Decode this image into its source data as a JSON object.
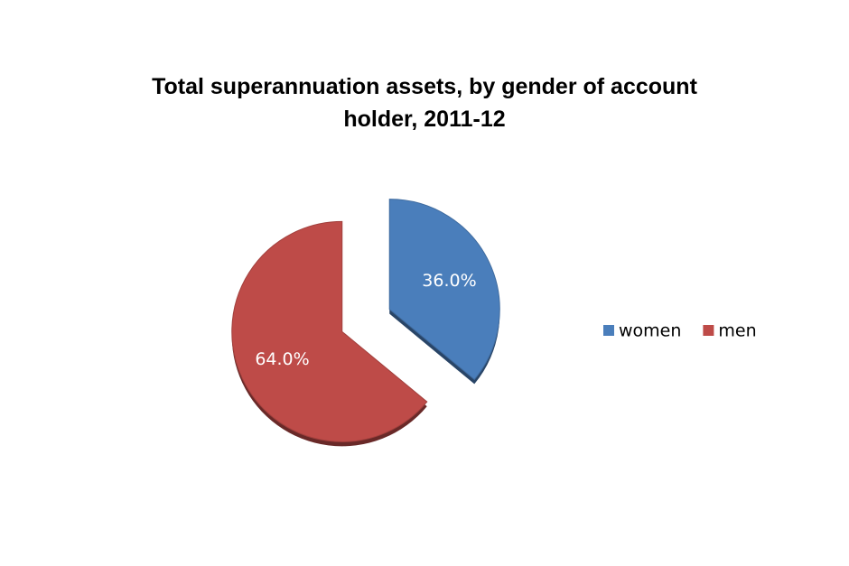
{
  "chart_data": {
    "type": "pie",
    "title": "Total superannuation assets, by gender of account holder, 2011-12",
    "categories": [
      "women",
      "men"
    ],
    "values": [
      36,
      64
    ],
    "value_labels": [
      "36.0%",
      "64.0%"
    ],
    "colors": [
      "#4a7ebb",
      "#be4b48"
    ],
    "legend": "right"
  }
}
